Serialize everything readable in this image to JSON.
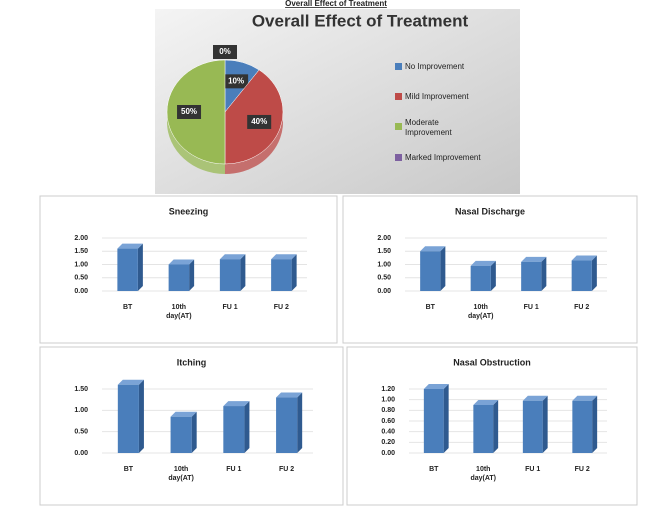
{
  "heading": "Overall Effect of Treatment",
  "chart_data": [
    {
      "type": "pie",
      "title": "Overall Effect of Treatment",
      "categories": [
        "No Improvement",
        "Mild Improvement",
        "Moderate Improvement",
        "Marked Improvement"
      ],
      "values": [
        10,
        40,
        50,
        0
      ],
      "value_labels": [
        "10%",
        "40%",
        "50%",
        "0%"
      ],
      "colors": [
        "#4a7ebb",
        "#be4b48",
        "#98b954",
        "#7d60a0"
      ],
      "legend": "right"
    },
    {
      "type": "bar",
      "title": "Sneezing",
      "categories": [
        "BT",
        "10th day(AT)",
        "FU 1",
        "FU 2"
      ],
      "values": [
        1.6,
        1.0,
        1.2,
        1.2
      ],
      "color": "#4a7ebb",
      "ylim": [
        0,
        2
      ],
      "yticks": [
        {
          "value": 0,
          "label": "0.00"
        },
        {
          "value": 0.5,
          "label": "0.50"
        },
        {
          "value": 1,
          "label": "1.00"
        },
        {
          "value": 1.5,
          "label": "1.50"
        },
        {
          "value": 2,
          "label": "2.00"
        }
      ],
      "grid": true
    },
    {
      "type": "bar",
      "title": "Nasal Discharge",
      "categories": [
        "BT",
        "10th day(AT)",
        "FU 1",
        "FU 2"
      ],
      "values": [
        1.5,
        0.95,
        1.1,
        1.15
      ],
      "color": "#4a7ebb",
      "ylim": [
        0,
        2
      ],
      "yticks": [
        {
          "value": 0,
          "label": "0.00"
        },
        {
          "value": 0.5,
          "label": "0.50"
        },
        {
          "value": 1,
          "label": "1.00"
        },
        {
          "value": 1.5,
          "label": "1.50"
        },
        {
          "value": 2,
          "label": "2.00"
        }
      ],
      "grid": true
    },
    {
      "type": "bar",
      "title": "Itching",
      "categories": [
        "BT",
        "10th day(AT)",
        "FU 1",
        "FU 2"
      ],
      "values": [
        1.6,
        0.85,
        1.1,
        1.3
      ],
      "color": "#4a7ebb",
      "ylim": [
        0,
        1.5
      ],
      "yticks": [
        {
          "value": 0,
          "label": "0.00"
        },
        {
          "value": 0.5,
          "label": "0.50"
        },
        {
          "value": 1,
          "label": "1.00"
        },
        {
          "value": 1.5,
          "label": "1.50"
        }
      ],
      "grid": true
    },
    {
      "type": "bar",
      "title": "Nasal Obstruction",
      "categories": [
        "BT",
        "10th day(AT)",
        "FU 1",
        "FU 2"
      ],
      "values": [
        1.2,
        0.9,
        0.98,
        0.98
      ],
      "color": "#4a7ebb",
      "ylim": [
        0,
        1.2
      ],
      "yticks": [
        {
          "value": 0,
          "label": "0.00"
        },
        {
          "value": 0.2,
          "label": "0.20"
        },
        {
          "value": 0.4,
          "label": "0.40"
        },
        {
          "value": 0.6,
          "label": "0.60"
        },
        {
          "value": 0.8,
          "label": "0.80"
        },
        {
          "value": 1,
          "label": "1.00"
        },
        {
          "value": 1.2,
          "label": "1.20"
        }
      ],
      "grid": true
    }
  ]
}
